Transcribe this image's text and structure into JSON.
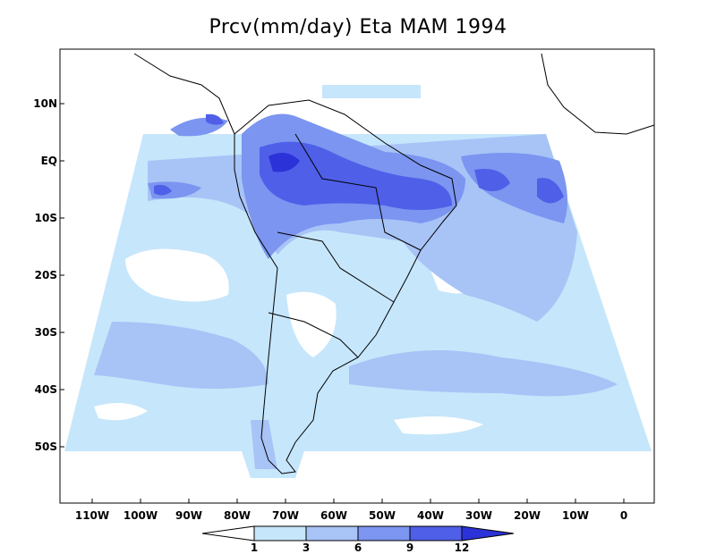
{
  "title": "Prcv(mm/day) Eta MAM 1994",
  "y_axis_labels": [
    "10N",
    "EQ",
    "10S",
    "20S",
    "30S",
    "40S",
    "50S"
  ],
  "x_axis_labels": [
    "110W",
    "100W",
    "90W",
    "80W",
    "70W",
    "60W",
    "50W",
    "40W",
    "30W",
    "20W",
    "10W",
    "0"
  ],
  "colorbar": {
    "labels": [
      "1",
      "3",
      "6",
      "9",
      "12"
    ],
    "colors": [
      "#ffffff",
      "#c6e6fb",
      "#a8c3f6",
      "#7b95f0",
      "#4f5fe8",
      "#2b33d8"
    ]
  },
  "colors": {
    "field_lightest": "#c6e6fb",
    "field_light": "#a8c3f6",
    "field_medium": "#7b95f0",
    "field_strong": "#4f5fe8",
    "field_max": "#2b33d8",
    "coastline": "#000000"
  }
}
